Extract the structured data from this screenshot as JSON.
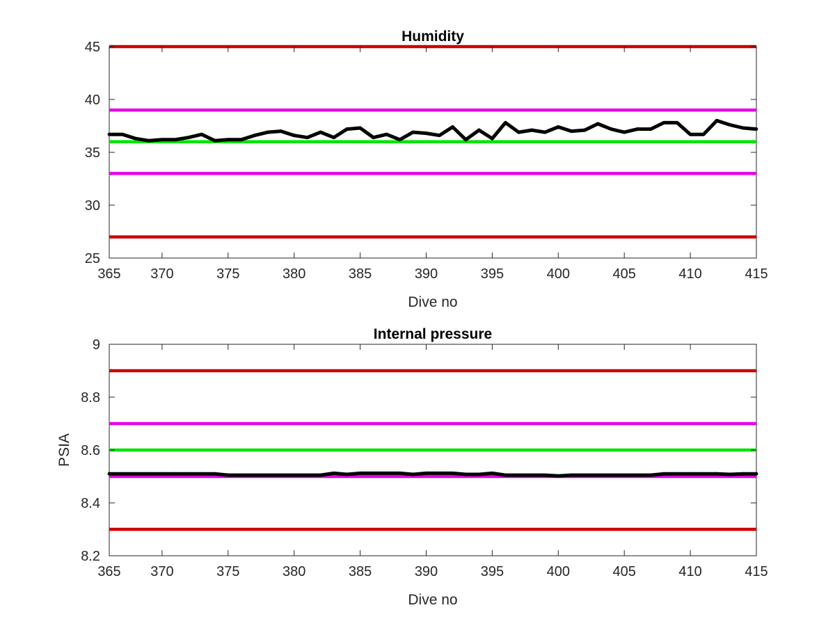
{
  "chart_data": [
    {
      "type": "line",
      "title": "Humidity",
      "xlabel": "Dive no",
      "ylabel": "",
      "xlim": [
        366,
        415
      ],
      "ylim": [
        25,
        45
      ],
      "xticks": [
        365,
        370,
        375,
        380,
        385,
        390,
        395,
        400,
        405,
        410,
        415
      ],
      "xtick_labels": [
        "365",
        "370",
        "375",
        "380",
        "385",
        "390",
        "395",
        "400",
        "405",
        "410",
        "415"
      ],
      "yticks": [
        25,
        30,
        35,
        40,
        45
      ],
      "ytick_labels": [
        "25",
        "30",
        "35",
        "40",
        "45"
      ],
      "grid": false,
      "reference_lines": [
        {
          "y": 45,
          "color": "#cc0000"
        },
        {
          "y": 39,
          "color": "#e600e6"
        },
        {
          "y": 36,
          "color": "#00e600"
        },
        {
          "y": 33,
          "color": "#e600e6"
        },
        {
          "y": 27,
          "color": "#cc0000"
        }
      ],
      "series": [
        {
          "color": "#000000",
          "x": [
            366,
            367,
            368,
            369,
            370,
            371,
            372,
            373,
            374,
            375,
            376,
            377,
            378,
            379,
            380,
            381,
            382,
            383,
            384,
            385,
            386,
            387,
            388,
            389,
            390,
            391,
            392,
            393,
            394,
            395,
            396,
            397,
            398,
            399,
            400,
            401,
            402,
            403,
            404,
            405,
            406,
            407,
            408,
            409,
            410,
            411,
            412,
            413,
            414,
            415
          ],
          "y": [
            36.7,
            36.7,
            36.3,
            36.1,
            36.2,
            36.2,
            36.4,
            36.7,
            36.1,
            36.2,
            36.2,
            36.6,
            36.9,
            37.0,
            36.6,
            36.4,
            36.9,
            36.4,
            37.2,
            37.3,
            36.4,
            36.7,
            36.2,
            36.9,
            36.8,
            36.6,
            37.4,
            36.2,
            37.1,
            36.3,
            37.8,
            36.9,
            37.1,
            36.9,
            37.4,
            37.0,
            37.1,
            37.7,
            37.2,
            36.9,
            37.2,
            37.2,
            37.8,
            37.8,
            36.7,
            36.7,
            38.0,
            37.6,
            37.3,
            37.2
          ]
        }
      ]
    },
    {
      "type": "line",
      "title": "Internal pressure",
      "xlabel": "Dive no",
      "ylabel": "PSIA",
      "xlim": [
        366,
        415
      ],
      "ylim": [
        8.2,
        9.0
      ],
      "xticks": [
        365,
        370,
        375,
        380,
        385,
        390,
        395,
        400,
        405,
        410,
        415
      ],
      "xtick_labels": [
        "365",
        "370",
        "375",
        "380",
        "385",
        "390",
        "395",
        "400",
        "405",
        "410",
        "415"
      ],
      "yticks": [
        8.2,
        8.4,
        8.6,
        8.8,
        9.0
      ],
      "ytick_labels": [
        "8.2",
        "8.4",
        "8.6",
        "8.8",
        "9"
      ],
      "grid": false,
      "reference_lines": [
        {
          "y": 8.9,
          "color": "#cc0000"
        },
        {
          "y": 8.7,
          "color": "#e600e6"
        },
        {
          "y": 8.6,
          "color": "#00e600"
        },
        {
          "y": 8.5,
          "color": "#e600e6"
        },
        {
          "y": 8.3,
          "color": "#cc0000"
        }
      ],
      "series": [
        {
          "color": "#000000",
          "x": [
            366,
            367,
            368,
            369,
            370,
            371,
            372,
            373,
            374,
            375,
            376,
            377,
            378,
            379,
            380,
            381,
            382,
            383,
            384,
            385,
            386,
            387,
            388,
            389,
            390,
            391,
            392,
            393,
            394,
            395,
            396,
            397,
            398,
            399,
            400,
            401,
            402,
            403,
            404,
            405,
            406,
            407,
            408,
            409,
            410,
            411,
            412,
            413,
            414,
            415
          ],
          "y": [
            8.51,
            8.51,
            8.51,
            8.51,
            8.51,
            8.51,
            8.51,
            8.51,
            8.51,
            8.505,
            8.505,
            8.505,
            8.505,
            8.505,
            8.505,
            8.505,
            8.505,
            8.512,
            8.508,
            8.512,
            8.512,
            8.512,
            8.512,
            8.508,
            8.512,
            8.512,
            8.512,
            8.508,
            8.508,
            8.512,
            8.505,
            8.505,
            8.505,
            8.505,
            8.502,
            8.505,
            8.505,
            8.505,
            8.505,
            8.505,
            8.505,
            8.505,
            8.51,
            8.51,
            8.51,
            8.51,
            8.51,
            8.508,
            8.51,
            8.51
          ]
        }
      ]
    }
  ]
}
